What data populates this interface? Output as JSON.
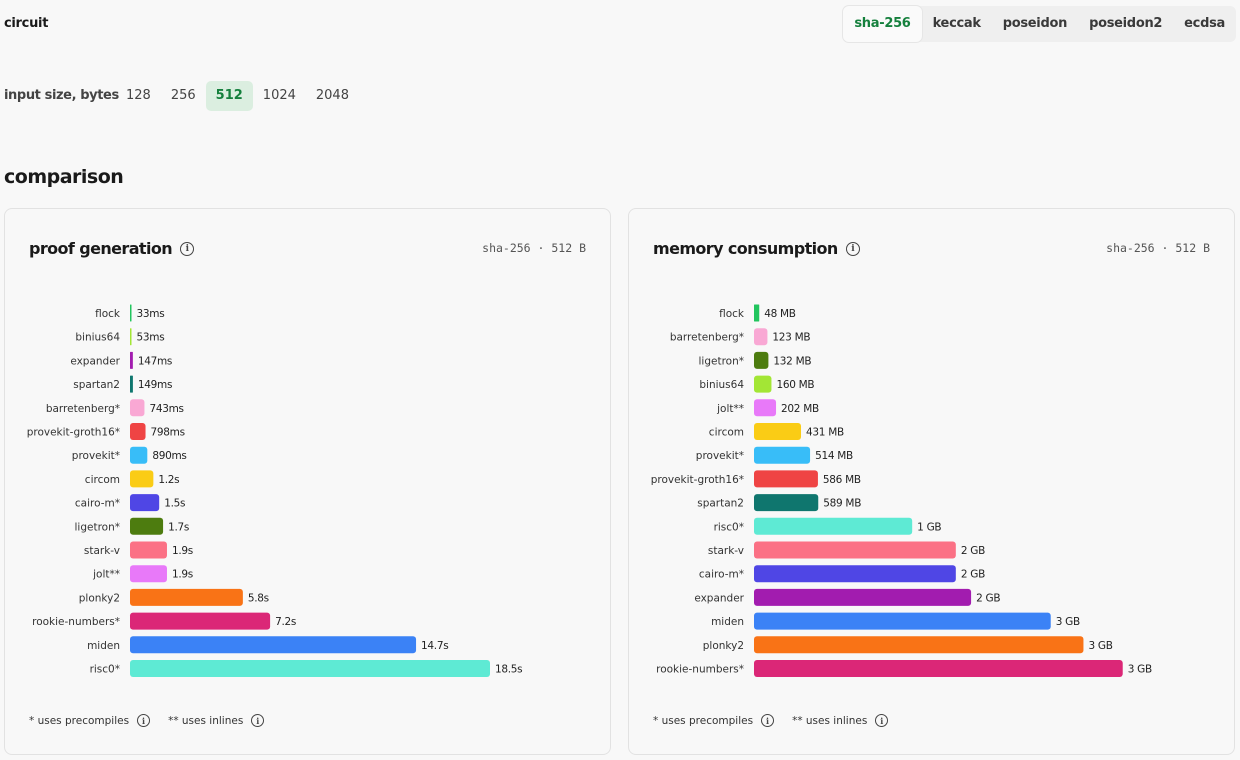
{
  "header": {
    "circuit_label": "circuit",
    "circuit_tabs": [
      "sha-256",
      "keccak",
      "poseidon",
      "poseidon2",
      "ecdsa"
    ],
    "active_circuit": "sha-256",
    "size_label": "input size, bytes",
    "sizes": [
      "128",
      "256",
      "512",
      "1024",
      "2048"
    ],
    "active_size": "512"
  },
  "section_title": "comparison",
  "footnotes": {
    "precompiles": "* uses precompiles",
    "inlines": "** uses inlines"
  },
  "icons": {
    "info": "info-icon"
  },
  "colors": {
    "accent": "#15803d",
    "active_size_bg": "#dbeee0"
  },
  "chart_data": [
    {
      "type": "bar",
      "orientation": "horizontal",
      "title": "proof generation",
      "meta": "sha-256 · 512 B",
      "unit": "seconds",
      "xlim": [
        0,
        18.5
      ],
      "categories": [
        "flock",
        "binius64",
        "expander",
        "spartan2",
        "barretenberg*",
        "provekit-groth16*",
        "provekit*",
        "circom",
        "cairo-m*",
        "ligetron*",
        "stark-v",
        "jolt**",
        "plonky2",
        "rookie-numbers*",
        "miden",
        "risc0*"
      ],
      "values": [
        0.033,
        0.053,
        0.147,
        0.149,
        0.743,
        0.798,
        0.89,
        1.2,
        1.5,
        1.7,
        1.9,
        1.9,
        5.8,
        7.2,
        14.7,
        18.5
      ],
      "labels": [
        "33ms",
        "53ms",
        "147ms",
        "149ms",
        "743ms",
        "798ms",
        "890ms",
        "1.2s",
        "1.5s",
        "1.7s",
        "1.9s",
        "1.9s",
        "5.8s",
        "7.2s",
        "14.7s",
        "18.5s"
      ],
      "colors": [
        "#22c55e",
        "#a3e635",
        "#a21caf",
        "#0f766e",
        "#f9a8d4",
        "#ef4444",
        "#38bdf8",
        "#facc15",
        "#4f46e5",
        "#4d7c0f",
        "#fb7185",
        "#e879f9",
        "#f97316",
        "#db2777",
        "#3b82f6",
        "#5eead4"
      ]
    },
    {
      "type": "bar",
      "orientation": "horizontal",
      "title": "memory consumption",
      "meta": "sha-256 · 512 B",
      "unit": "MB",
      "xlim": [
        0,
        3300
      ],
      "categories": [
        "flock",
        "barretenberg*",
        "ligetron*",
        "binius64",
        "jolt**",
        "circom",
        "provekit*",
        "provekit-groth16*",
        "spartan2",
        "risc0*",
        "stark-v",
        "cairo-m*",
        "expander",
        "miden",
        "plonky2",
        "rookie-numbers*"
      ],
      "values": [
        48,
        123,
        132,
        160,
        202,
        431,
        514,
        586,
        589,
        1450,
        1850,
        1850,
        1990,
        2720,
        3020,
        3380
      ],
      "labels": [
        "48 MB",
        "123 MB",
        "132 MB",
        "160 MB",
        "202 MB",
        "431 MB",
        "514 MB",
        "586 MB",
        "589 MB",
        "1 GB",
        "2 GB",
        "2 GB",
        "2 GB",
        "3 GB",
        "3 GB",
        "3 GB"
      ],
      "colors": [
        "#22c55e",
        "#f9a8d4",
        "#4d7c0f",
        "#a3e635",
        "#e879f9",
        "#facc15",
        "#38bdf8",
        "#ef4444",
        "#0f766e",
        "#5eead4",
        "#fb7185",
        "#4f46e5",
        "#a21caf",
        "#3b82f6",
        "#f97316",
        "#db2777"
      ]
    }
  ]
}
